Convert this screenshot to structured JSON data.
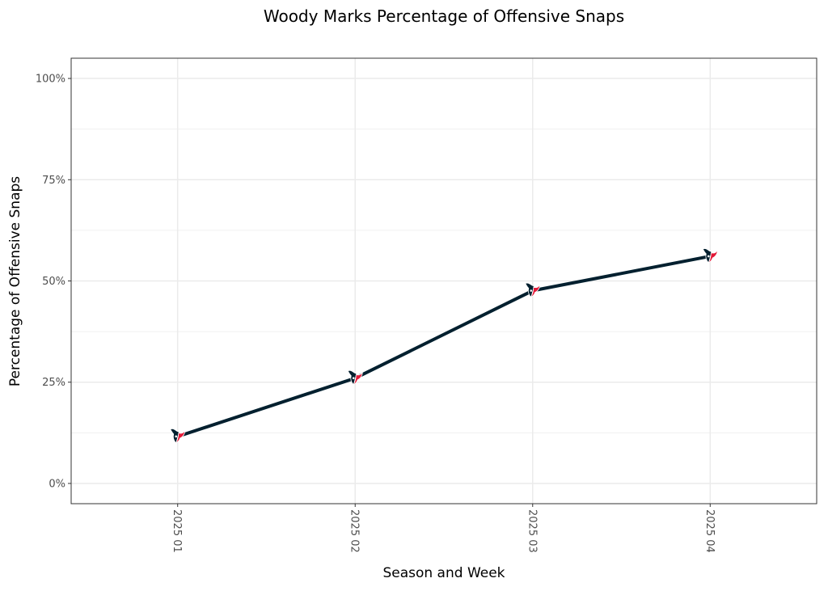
{
  "chart_data": {
    "type": "line",
    "title": "Woody Marks Percentage of Offensive Snaps",
    "xlabel": "Season and Week",
    "ylabel": "Percentage of Offensive Snaps",
    "categories": [
      "2025 01",
      "2025 02",
      "2025 03",
      "2025 04"
    ],
    "values": [
      11.6,
      26.0,
      47.6,
      56.1
    ],
    "ylim": [
      0,
      100
    ],
    "yticks": [
      0,
      25,
      50,
      75,
      100
    ],
    "ytick_labels": [
      "0%",
      "25%",
      "50%",
      "75%",
      "100%"
    ],
    "grid": true,
    "line_color": "#03202F",
    "marker": "houston-texans-logo-icon",
    "marker_colors": [
      "#03202F",
      "#A71930"
    ]
  }
}
